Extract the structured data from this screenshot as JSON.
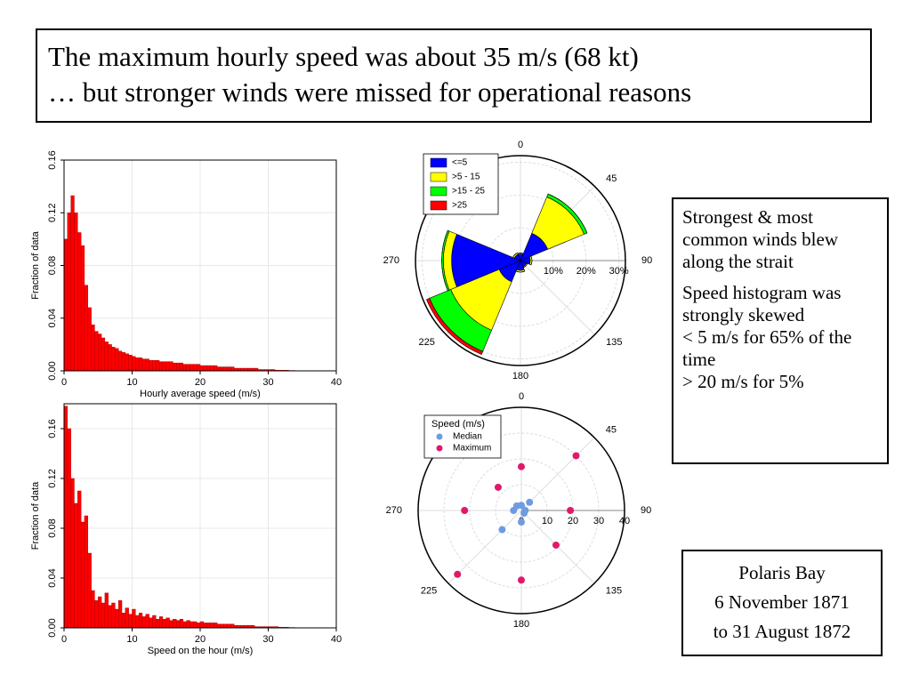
{
  "title_box": {
    "lines": [
      "The maximum hourly speed was about 35 m/s (68 kt)",
      "… but stronger winds were missed for operational reasons"
    ]
  },
  "notes": {
    "paragraphs": [
      [
        "Strongest & most common winds blew along the strait"
      ],
      [
        "Speed histogram was strongly skewed",
        "< 5 m/s for 65% of the time",
        "> 20 m/s for  5%"
      ]
    ]
  },
  "place_box": {
    "lines": [
      "Polaris Bay",
      "6 November 1871",
      "to 31 August 1872"
    ]
  },
  "chart_data": [
    {
      "type": "histogram",
      "xlabel": "Hourly average speed (m/s)",
      "ylabel": "Fraction of data",
      "color": "#ff0000",
      "grid": true,
      "bins": [
        0,
        0.5,
        1,
        1.5,
        2,
        2.5,
        3,
        3.5,
        4,
        4.5,
        5,
        5.5,
        6,
        6.5,
        7,
        7.5,
        8,
        8.5,
        9,
        9.5,
        10,
        10.5,
        11,
        11.5,
        12,
        12.5,
        13,
        13.5,
        14,
        14.5,
        15,
        15.5,
        16,
        16.5,
        17,
        17.5,
        18,
        18.5,
        19,
        19.5,
        20,
        20.5,
        21,
        21.5,
        22,
        22.5,
        23,
        23.5,
        24,
        24.5,
        25,
        25.5,
        26,
        26.5,
        27,
        27.5,
        28,
        28.5,
        29,
        29.5,
        30,
        30.5,
        31,
        31.5,
        32,
        32.5,
        33,
        33.5,
        34,
        34.5,
        35
      ],
      "values": [
        0.1,
        0.12,
        0.133,
        0.12,
        0.105,
        0.095,
        0.065,
        0.048,
        0.035,
        0.03,
        0.028,
        0.025,
        0.022,
        0.02,
        0.018,
        0.017,
        0.015,
        0.014,
        0.013,
        0.012,
        0.011,
        0.01,
        0.01,
        0.009,
        0.009,
        0.008,
        0.008,
        0.008,
        0.007,
        0.007,
        0.007,
        0.007,
        0.006,
        0.006,
        0.006,
        0.005,
        0.005,
        0.005,
        0.005,
        0.005,
        0.004,
        0.004,
        0.004,
        0.004,
        0.004,
        0.003,
        0.003,
        0.003,
        0.003,
        0.003,
        0.002,
        0.002,
        0.002,
        0.002,
        0.002,
        0.002,
        0.002,
        0.001,
        0.001,
        0.001,
        0.001,
        0.001,
        0.0005,
        0.0005,
        0.0005,
        0.0005,
        0.0003,
        0.0003,
        0.0002,
        0.0002
      ],
      "xlim": [
        0,
        40
      ],
      "xticks": [
        0,
        10,
        20,
        30,
        40
      ],
      "ylim": [
        0,
        0.16
      ],
      "yticks": [
        {
          "value": 0,
          "label": "0.00"
        },
        0.04,
        0.08,
        0.12,
        0.16
      ]
    },
    {
      "type": "histogram",
      "xlabel": "Speed on the hour (m/s)",
      "ylabel": "Fraction of data",
      "color": "#ff0000",
      "grid": true,
      "bins": [
        0,
        0.5,
        1,
        1.5,
        2,
        2.5,
        3,
        3.5,
        4,
        4.5,
        5,
        5.5,
        6,
        6.5,
        7,
        7.5,
        8,
        8.5,
        9,
        9.5,
        10,
        10.5,
        11,
        11.5,
        12,
        12.5,
        13,
        13.5,
        14,
        14.5,
        15,
        15.5,
        16,
        16.5,
        17,
        17.5,
        18,
        18.5,
        19,
        19.5,
        20,
        20.5,
        21,
        21.5,
        22,
        22.5,
        23,
        23.5,
        24,
        24.5,
        25,
        25.5,
        26,
        26.5,
        27,
        27.5,
        28,
        28.5,
        29,
        29.5,
        30,
        30.5,
        31,
        31.5,
        32,
        32.5,
        33,
        33.5,
        34,
        34.5,
        35
      ],
      "values": [
        0.178,
        0.16,
        0.12,
        0.1,
        0.11,
        0.085,
        0.09,
        0.06,
        0.03,
        0.022,
        0.025,
        0.02,
        0.028,
        0.018,
        0.02,
        0.015,
        0.022,
        0.012,
        0.016,
        0.011,
        0.015,
        0.01,
        0.012,
        0.009,
        0.011,
        0.008,
        0.01,
        0.007,
        0.009,
        0.007,
        0.008,
        0.006,
        0.007,
        0.006,
        0.007,
        0.005,
        0.006,
        0.005,
        0.005,
        0.004,
        0.005,
        0.004,
        0.004,
        0.004,
        0.004,
        0.003,
        0.003,
        0.003,
        0.003,
        0.003,
        0.002,
        0.002,
        0.002,
        0.002,
        0.002,
        0.002,
        0.001,
        0.001,
        0.001,
        0.001,
        0.001,
        0.001,
        0.001,
        0.0005,
        0.0005,
        0.0005,
        0.0003,
        0.0003,
        0.0002,
        0.0002
      ],
      "xlim": [
        0,
        40
      ],
      "xticks": [
        0,
        10,
        20,
        30,
        40
      ],
      "ylim": [
        0,
        0.18
      ],
      "yticks": [
        {
          "value": 0,
          "label": "0.00"
        },
        0.04,
        0.08,
        0.12,
        0.16
      ]
    },
    {
      "type": "polar_bar",
      "legend": "upper left",
      "theta": [
        0,
        45,
        90,
        135,
        180,
        225,
        270,
        315
      ],
      "thetaticks": [
        0,
        45,
        90,
        135,
        180,
        225,
        270
      ],
      "rlim": [
        0,
        32
      ],
      "rticks": [
        {
          "value": 10,
          "label": "10%"
        },
        {
          "value": 20,
          "label": "20%"
        },
        {
          "value": 30,
          "label": "30%"
        }
      ],
      "series": [
        {
          "name": "<=5",
          "color": "#0000ff",
          "values": [
            2,
            9,
            3,
            2,
            3,
            7,
            21,
            2
          ]
        },
        {
          "name": ">5 - 15",
          "color": "#ffff00",
          "values": [
            0.3,
            12,
            0.5,
            0.3,
            0.5,
            16,
            2.5,
            0.5
          ]
        },
        {
          "name": ">15 - 25",
          "color": "#00ff00",
          "values": [
            0,
            1,
            0,
            0,
            0,
            7,
            0.5,
            0
          ]
        },
        {
          "name": ">25",
          "color": "#ff0000",
          "values": [
            0,
            0,
            0,
            0,
            0,
            1,
            0,
            0
          ]
        }
      ]
    },
    {
      "type": "polar_scatter",
      "legend": "upper left",
      "legend_title": "Speed (m/s)",
      "theta": [
        0,
        45,
        90,
        135,
        180,
        225,
        270,
        315
      ],
      "thetaticks": [
        0,
        45,
        90,
        135,
        180,
        225,
        270
      ],
      "rlim": [
        0,
        40
      ],
      "rticks": [
        0,
        10,
        20,
        30,
        40
      ],
      "series": [
        {
          "name": "Median",
          "color": "#6f9be0",
          "values": [
            2,
            4.5,
            1.5,
            1.5,
            4.5,
            10.5,
            3,
            2.5
          ]
        },
        {
          "name": "Maximum",
          "color": "#e0196b",
          "values": [
            17,
            30,
            19,
            19,
            27,
            35,
            22,
            12.7
          ]
        }
      ]
    }
  ]
}
